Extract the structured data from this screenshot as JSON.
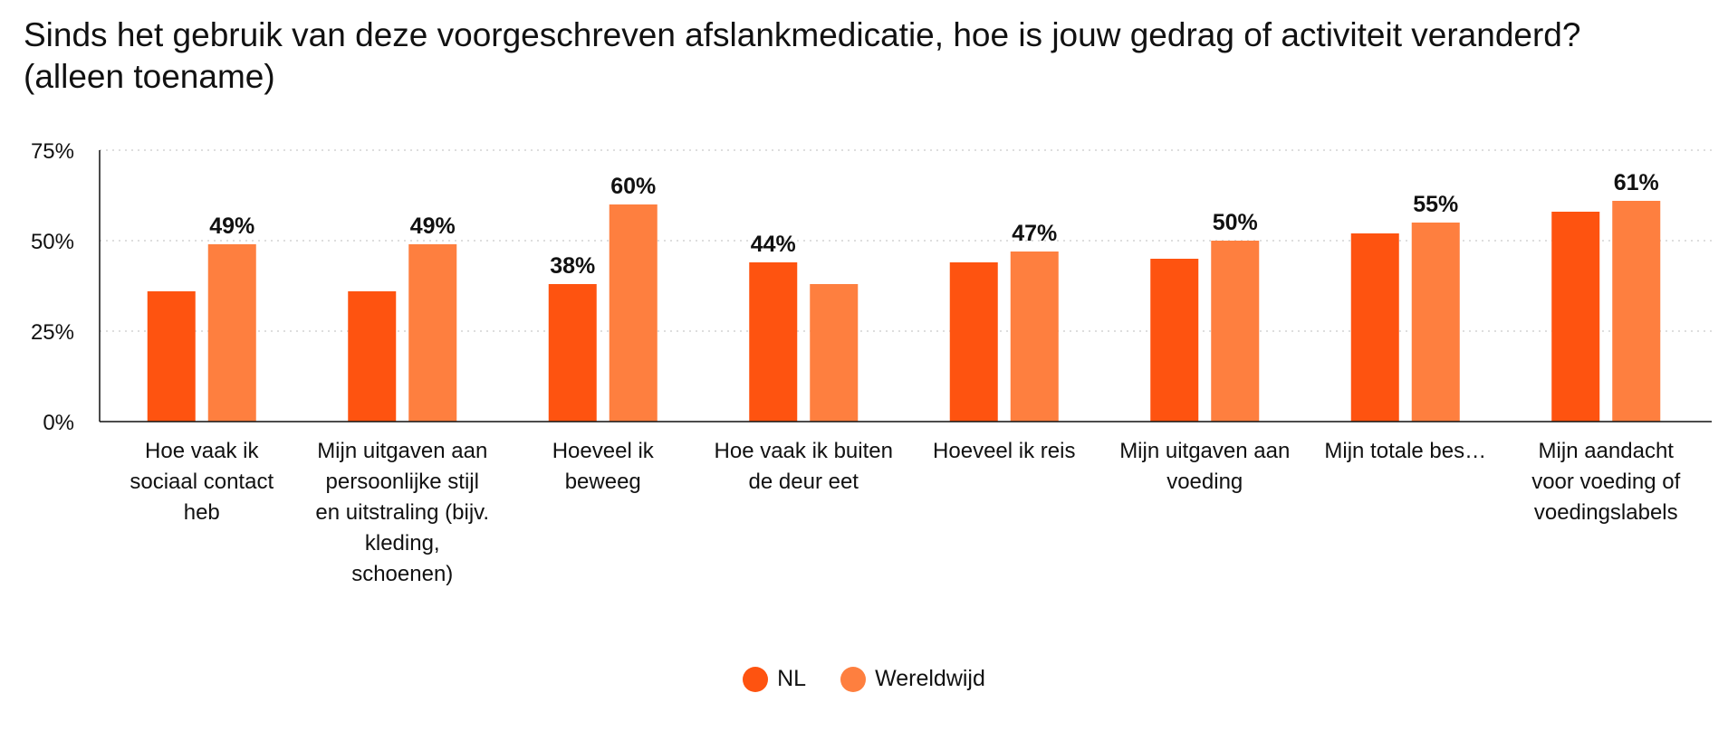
{
  "colors": {
    "nl": "#FE5310",
    "wereldwijd": "#FE7F3F",
    "axis": "#111111",
    "grid": "#d4d4d4"
  },
  "chart_data": {
    "type": "bar",
    "title": "Sinds het gebruik van deze voorgeschreven afslankmedicatie, hoe is jouw gedrag of activiteit veranderd? (alleen toename)",
    "xlabel": "",
    "ylabel": "",
    "ylim": [
      0,
      75
    ],
    "yticks": [
      0,
      25,
      50,
      75
    ],
    "ytick_labels": [
      "0%",
      "25%",
      "50%",
      "75%"
    ],
    "grid": true,
    "legend_position": "bottom",
    "categories": [
      "Hoe vaak ik sociaal contact heb",
      "Mijn uitgaven aan persoonlijke stijl en uitstraling (bijv. kleding, schoenen)",
      "Hoeveel ik beweeg",
      "Hoe vaak ik buiten de deur eet",
      "Hoeveel ik reis",
      "Mijn uitgaven aan voeding",
      "Mijn totale bes…",
      "Mijn aandacht voor voeding of voedingslabels"
    ],
    "series": [
      {
        "name": "NL",
        "values": [
          36,
          36,
          38,
          44,
          44,
          45,
          52,
          58
        ],
        "labels": [
          "",
          "",
          "38%",
          "44%",
          "",
          "",
          "",
          ""
        ]
      },
      {
        "name": "Wereldwijd",
        "values": [
          49,
          49,
          60,
          38,
          47,
          50,
          55,
          61
        ],
        "labels": [
          "49%",
          "49%",
          "60%",
          "",
          "47%",
          "50%",
          "55%",
          "61%"
        ]
      }
    ]
  }
}
